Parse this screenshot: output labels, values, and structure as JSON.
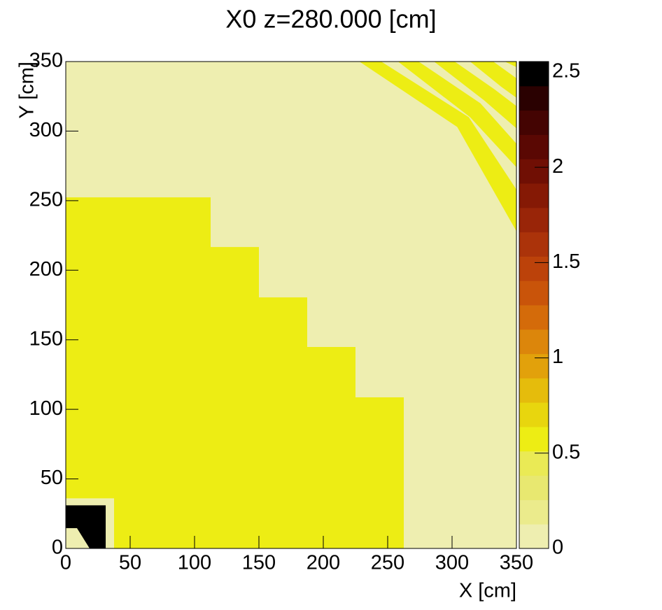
{
  "chart_data": {
    "type": "heatmap",
    "title": "X0 z=280.000 [cm]",
    "x_label": "X [cm]",
    "y_label": "Y [cm]",
    "xlim": [
      0,
      350
    ],
    "ylim": [
      0,
      350
    ],
    "xticks": [
      0,
      50,
      100,
      150,
      200,
      250,
      300,
      350
    ],
    "yticks": [
      0,
      50,
      100,
      150,
      200,
      250,
      300,
      350
    ],
    "zlim": [
      0,
      2.555
    ],
    "zticks": [
      0,
      0.5,
      1,
      1.5,
      2,
      2.5
    ],
    "palette": [
      "#eeeeb0",
      "#ebeb8c",
      "#e8e870",
      "#eaea55",
      "#eded14",
      "#e8d60e",
      "#e5bc0c",
      "#e2a10b",
      "#dc860b",
      "#d46b0a",
      "#c9540a",
      "#bc420a",
      "#ab330a",
      "#992508",
      "#851905",
      "#700f04",
      "#5a0803",
      "#440402",
      "#2a0101",
      "#000000"
    ],
    "regions": [
      {
        "value": 0.05,
        "points": [
          [
            0,
            0
          ],
          [
            350,
            0
          ],
          [
            350,
            350
          ],
          [
            0,
            350
          ]
        ]
      },
      {
        "value": 0.55,
        "points": [
          [
            0,
            0
          ],
          [
            262.5,
            0
          ],
          [
            262.5,
            108.6
          ],
          [
            225,
            108.6
          ],
          [
            225,
            144.8
          ],
          [
            187.5,
            144.8
          ],
          [
            187.5,
            180.5
          ],
          [
            150,
            180.5
          ],
          [
            150,
            216.7
          ],
          [
            112.5,
            216.7
          ],
          [
            112.5,
            252.4
          ],
          [
            0,
            252.4
          ]
        ]
      },
      {
        "value": 0.05,
        "points": [
          [
            0,
            0
          ],
          [
            37.5,
            0
          ],
          [
            37.5,
            36
          ],
          [
            0,
            36
          ]
        ]
      },
      {
        "value": 2.55,
        "points": [
          [
            0,
            0
          ],
          [
            31,
            0
          ],
          [
            31,
            31
          ],
          [
            0,
            31
          ]
        ]
      },
      {
        "value": 0.05,
        "points": [
          [
            0,
            0
          ],
          [
            18.5,
            0
          ],
          [
            8.7,
            14.6
          ],
          [
            0,
            14.6
          ]
        ]
      },
      {
        "value": 0.55,
        "points": [
          [
            228,
            350
          ],
          [
            245,
            350
          ],
          [
            313,
            310
          ],
          [
            350,
            258
          ],
          [
            350,
            228
          ],
          [
            304,
            303
          ]
        ]
      },
      {
        "value": 0.55,
        "points": [
          [
            258,
            350
          ],
          [
            274,
            350
          ],
          [
            322,
            320
          ],
          [
            350,
            291
          ],
          [
            350,
            274
          ],
          [
            314,
            310
          ]
        ]
      },
      {
        "value": 0.55,
        "points": [
          [
            286,
            350
          ],
          [
            302,
            350
          ],
          [
            333,
            330
          ],
          [
            350,
            318
          ],
          [
            350,
            302
          ],
          [
            325,
            322
          ]
        ]
      },
      {
        "value": 0.55,
        "points": [
          [
            314,
            350
          ],
          [
            332,
            350
          ],
          [
            350,
            338
          ],
          [
            350,
            324
          ],
          [
            338,
            332
          ]
        ]
      },
      {
        "value": 0.55,
        "points": [
          [
            341,
            350
          ],
          [
            350,
            350
          ],
          [
            350,
            346
          ]
        ]
      }
    ]
  }
}
